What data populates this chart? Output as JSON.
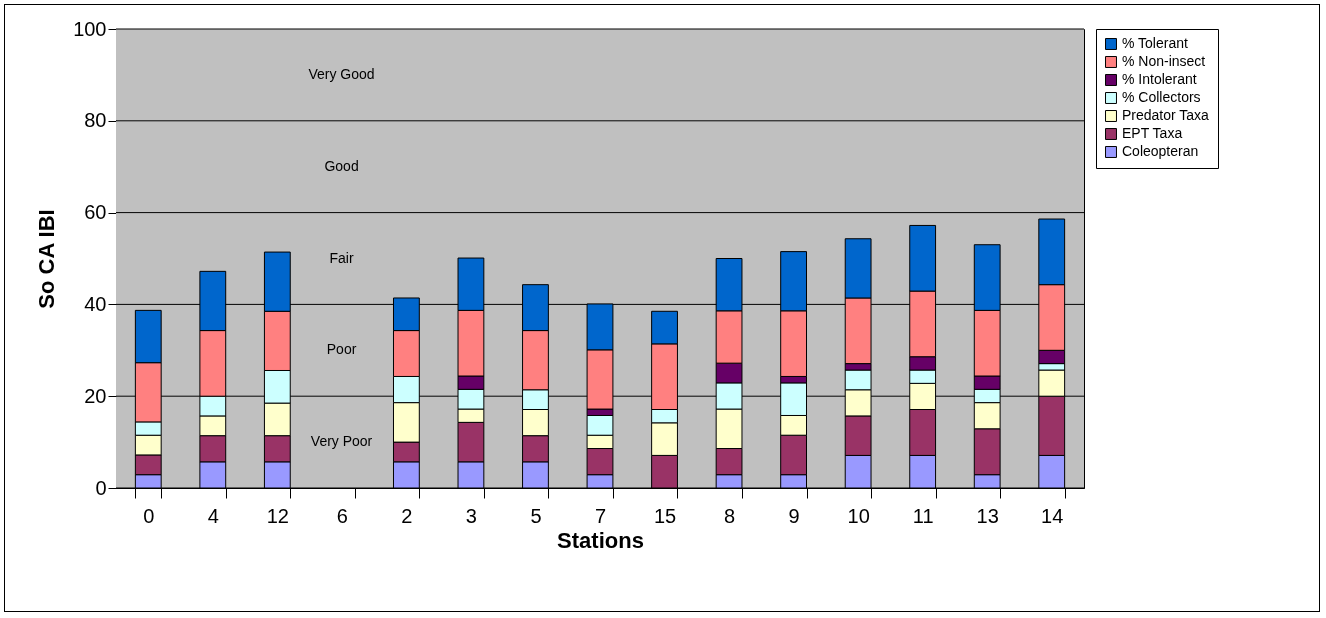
{
  "chart_data": {
    "type": "bar",
    "stacked": true,
    "xlabel": "Stations",
    "ylabel": "So CA IBI",
    "categories": [
      "0",
      "4",
      "12",
      "6",
      "2",
      "3",
      "5",
      "7",
      "15",
      "8",
      "9",
      "10",
      "11",
      "13",
      "14"
    ],
    "series": [
      {
        "name": "Coleopteran",
        "color": "#9999ff",
        "values": [
          2.9,
          5.7,
          5.7,
          0,
          5.7,
          5.7,
          5.7,
          2.9,
          0,
          2.9,
          2.9,
          7.1,
          7.1,
          2.9,
          7.1
        ]
      },
      {
        "name": "EPT Taxa",
        "color": "#993366",
        "values": [
          4.3,
          5.7,
          5.7,
          0,
          4.3,
          8.6,
          5.7,
          5.7,
          7.1,
          5.7,
          8.6,
          8.6,
          10,
          10,
          12.9
        ]
      },
      {
        "name": "Predator Taxa",
        "color": "#ffffcc",
        "values": [
          4.3,
          4.3,
          7.1,
          0,
          8.6,
          2.9,
          5.7,
          2.9,
          7.1,
          8.6,
          4.3,
          5.7,
          5.7,
          5.7,
          5.7
        ]
      },
      {
        "name": "% Collectors",
        "color": "#ccffff",
        "values": [
          2.9,
          4.3,
          7.1,
          0,
          5.7,
          4.3,
          4.3,
          4.3,
          2.9,
          5.7,
          7.1,
          4.3,
          2.9,
          2.9,
          1.4
        ]
      },
      {
        "name": "% Intolerant",
        "color": "#660066",
        "values": [
          0,
          0,
          0,
          0,
          0,
          2.9,
          0,
          1.4,
          0,
          4.3,
          1.4,
          1.4,
          2.9,
          2.9,
          2.9
        ]
      },
      {
        "name": "% Non-insect",
        "color": "#ff8080",
        "values": [
          12.9,
          14.3,
          12.9,
          0,
          10,
          14.3,
          12.9,
          12.9,
          14.3,
          11.4,
          14.3,
          14.3,
          14.3,
          14.3,
          14.3
        ]
      },
      {
        "name": "% Tolerant",
        "color": "#0066cc",
        "values": [
          11.4,
          12.9,
          12.9,
          0,
          7.1,
          11.4,
          10,
          10,
          7.1,
          11.4,
          12.9,
          12.9,
          14.3,
          14.3,
          14.3
        ]
      }
    ],
    "ylim": [
      0,
      100
    ],
    "yticks": [
      0,
      20,
      40,
      60,
      80,
      100
    ],
    "grid": "y",
    "legend": "right",
    "bands": [
      {
        "axis": "y",
        "from": 0,
        "to": 20,
        "label": "Very Poor",
        "color": "#c0c0c0"
      },
      {
        "axis": "y",
        "from": 20,
        "to": 40,
        "label": "Poor",
        "color": "#c0c0c0"
      },
      {
        "axis": "y",
        "from": 40,
        "to": 60,
        "label": "Fair",
        "color": "#c0c0c0"
      },
      {
        "axis": "y",
        "from": 60,
        "to": 80,
        "label": "Good",
        "color": "#c0c0c0"
      },
      {
        "axis": "y",
        "from": 80,
        "to": 100,
        "label": "Very Good",
        "color": "#c0c0c0"
      }
    ]
  }
}
